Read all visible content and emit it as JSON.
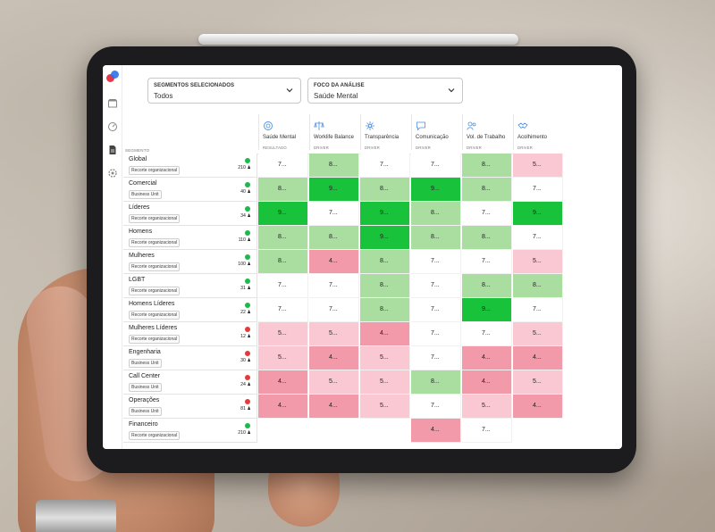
{
  "filters": {
    "segments": {
      "label": "SEGMENTOS SELECIONADOS",
      "value": "Todos"
    },
    "focus": {
      "label": "FOCO DA ANÁLISE",
      "value": "Saúde Mental"
    }
  },
  "segment_header": "SEGMENTO",
  "columns": [
    {
      "name": "Saúde Mental",
      "type": "RESULTADO",
      "icon": "brain-icon"
    },
    {
      "name": "Worklife Balance",
      "type": "DRIVER",
      "icon": "scale-icon"
    },
    {
      "name": "Transparência",
      "type": "DRIVER",
      "icon": "sparkle-icon"
    },
    {
      "name": "Comunicação",
      "type": "DRIVER",
      "icon": "chat-icon"
    },
    {
      "name": "Vol. de Trabalho",
      "type": "DRIVER",
      "icon": "people-icon"
    },
    {
      "name": "Acolhimento",
      "type": "DRIVER",
      "icon": "handshake-icon"
    }
  ],
  "rows": [
    {
      "name": "Global",
      "tag": "Recorte organizacional",
      "count": "210",
      "status": "ok",
      "cells": [
        [
          "7...",
          "w7"
        ],
        [
          "8...",
          "g8"
        ],
        [
          "7...",
          "w7"
        ],
        [
          "7...",
          "w7"
        ],
        [
          "8...",
          "g8"
        ],
        [
          "5...",
          "r5"
        ]
      ]
    },
    {
      "name": "Comercial",
      "tag": "Business Unit",
      "count": "40",
      "status": "ok",
      "cells": [
        [
          "8...",
          "g8"
        ],
        [
          "9...",
          "g9"
        ],
        [
          "8...",
          "g8"
        ],
        [
          "9...",
          "g9"
        ],
        [
          "8...",
          "g8"
        ],
        [
          "7...",
          "w7"
        ]
      ]
    },
    {
      "name": "Líderes",
      "tag": "Recorte organizacional",
      "count": "34",
      "status": "ok",
      "cells": [
        [
          "9...",
          "g9"
        ],
        [
          "7...",
          "w7"
        ],
        [
          "9...",
          "g9"
        ],
        [
          "8...",
          "g8"
        ],
        [
          "7...",
          "w7"
        ],
        [
          "9...",
          "g9"
        ]
      ]
    },
    {
      "name": "Homens",
      "tag": "Recorte organizacional",
      "count": "110",
      "status": "ok",
      "cells": [
        [
          "8...",
          "g8"
        ],
        [
          "8...",
          "g8"
        ],
        [
          "9...",
          "g9"
        ],
        [
          "8...",
          "g8"
        ],
        [
          "8...",
          "g8"
        ],
        [
          "7...",
          "w7"
        ]
      ]
    },
    {
      "name": "Mulheres",
      "tag": "Recorte organizacional",
      "count": "100",
      "status": "ok",
      "cells": [
        [
          "8...",
          "g8"
        ],
        [
          "4...",
          "r4"
        ],
        [
          "8...",
          "g8"
        ],
        [
          "7...",
          "w7"
        ],
        [
          "7...",
          "w7"
        ],
        [
          "5...",
          "r5"
        ]
      ]
    },
    {
      "name": "LGBT",
      "tag": "Recorte organizacional",
      "count": "31",
      "status": "ok",
      "cells": [
        [
          "7...",
          "w7"
        ],
        [
          "7...",
          "w7"
        ],
        [
          "8...",
          "g8"
        ],
        [
          "7...",
          "w7"
        ],
        [
          "8...",
          "g8"
        ],
        [
          "8...",
          "g8"
        ]
      ]
    },
    {
      "name": "Homens Líderes",
      "tag": "Recorte organizacional",
      "count": "22",
      "status": "ok",
      "cells": [
        [
          "7...",
          "w7"
        ],
        [
          "7...",
          "w7"
        ],
        [
          "8...",
          "g8"
        ],
        [
          "7...",
          "w7"
        ],
        [
          "9...",
          "g9"
        ],
        [
          "7...",
          "w7"
        ]
      ]
    },
    {
      "name": "Mulheres Líderes",
      "tag": "Recorte organizacional",
      "count": "12",
      "status": "bad",
      "cells": [
        [
          "5...",
          "r5"
        ],
        [
          "5...",
          "r5"
        ],
        [
          "4...",
          "r4"
        ],
        [
          "7...",
          "w7"
        ],
        [
          "7...",
          "w7"
        ],
        [
          "5...",
          "r5"
        ]
      ]
    },
    {
      "name": "Engenharia",
      "tag": "Business Unit",
      "count": "30",
      "status": "bad",
      "cells": [
        [
          "5...",
          "r5"
        ],
        [
          "4...",
          "r4"
        ],
        [
          "5...",
          "r5"
        ],
        [
          "7...",
          "w7"
        ],
        [
          "4...",
          "r4"
        ],
        [
          "4...",
          "r4"
        ]
      ]
    },
    {
      "name": "Call Center",
      "tag": "Business Unit",
      "count": "24",
      "status": "bad",
      "cells": [
        [
          "4...",
          "r4"
        ],
        [
          "5...",
          "r5"
        ],
        [
          "5...",
          "r5"
        ],
        [
          "8...",
          "g8"
        ],
        [
          "4...",
          "r4"
        ],
        [
          "5...",
          "r5"
        ]
      ]
    },
    {
      "name": "Operações",
      "tag": "Business Unit",
      "count": "81",
      "status": "bad",
      "cells": [
        [
          "4...",
          "r4"
        ],
        [
          "4...",
          "r4"
        ],
        [
          "5...",
          "r5"
        ],
        [
          "7...",
          "w7"
        ],
        [
          "5...",
          "r5"
        ],
        [
          "4...",
          "r4"
        ]
      ]
    },
    {
      "name": "Financeiro",
      "tag": "Recorte organizacional",
      "count": "210",
      "status": "ok",
      "cells": [
        null,
        null,
        null,
        [
          "4...",
          "r4"
        ],
        [
          "7...",
          "w7"
        ],
        null
      ]
    }
  ],
  "colors": {
    "g9": "#19c23b",
    "g8": "#a9dea0",
    "w7": "#ffffff",
    "r5": "#f9c8d2",
    "r4": "#f29aaa"
  }
}
